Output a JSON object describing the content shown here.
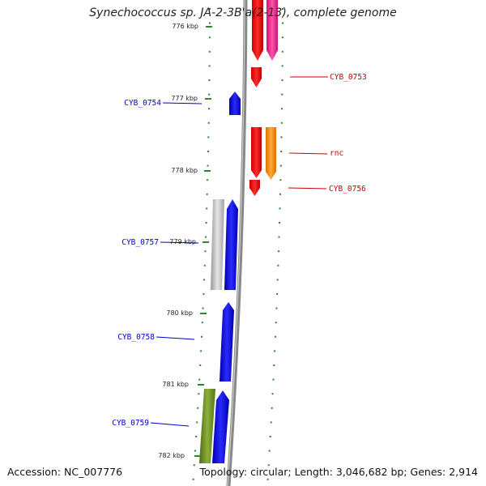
{
  "title": "Synechococcus sp. JA-2-3B'a(2-13), complete genome",
  "accession": "Accession: NC_007776",
  "summary": "Topology: circular; Length: 3,046,682 bp; Genes: 2,914",
  "colors": {
    "backbone": "#888888",
    "ticks": "#2a8a2a",
    "minus_strand_label": "#0000cc",
    "plus_strand_label": "#cc0000"
  },
  "kbp_labels": [
    "776 kbp",
    "777 kbp",
    "778 kbp",
    "779 kbp",
    "780 kbp",
    "781 kbp",
    "782 kbp"
  ],
  "genes_left": [
    "CYB_0754",
    "CYB_0757",
    "CYB_0758",
    "CYB_0759"
  ],
  "genes_right": [
    "CYB_0753",
    "rnc",
    "CYB_0756"
  ]
}
